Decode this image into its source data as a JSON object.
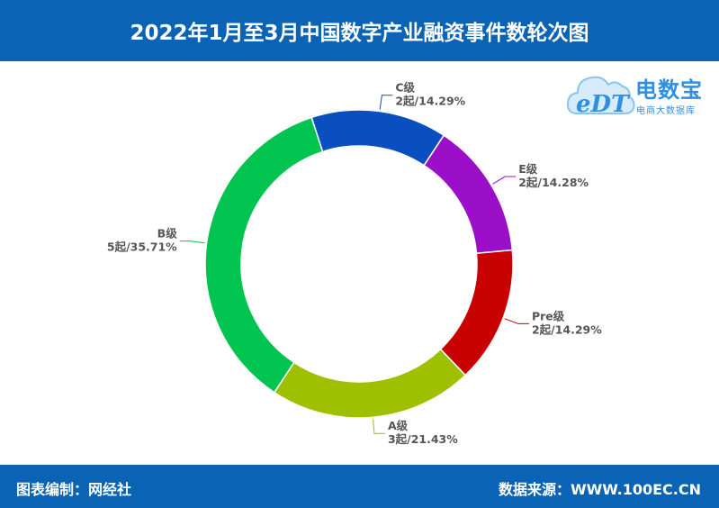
{
  "header": {
    "title": "2022年1月至3月中国数字产业融资事件数轮次图"
  },
  "footer": {
    "left_text": "图表编制：网经社",
    "right_text": "数据来源：WWW.100EC.CN"
  },
  "logo": {
    "mark_text": "eDT",
    "brand": "电数宝",
    "brand_sub": "电商大数据库"
  },
  "colors": {
    "header_bg": "#0a63b4",
    "C级": "#0a4fc0",
    "E级": "#9b0fc8",
    "Pre级": "#c80000",
    "A级": "#9ec000",
    "B级": "#00c44f"
  },
  "chart_data": {
    "type": "pie",
    "donut": true,
    "title": "2022年1月至3月中国数字产业融资事件数轮次图",
    "slices": [
      {
        "label": "C级",
        "count_label": "2起/14.29%",
        "value": 2,
        "percent": 14.29,
        "color": "#0a4fc0"
      },
      {
        "label": "E级",
        "count_label": "2起/14.28%",
        "value": 2,
        "percent": 14.28,
        "color": "#9b0fc8"
      },
      {
        "label": "Pre级",
        "count_label": "2起/14.29%",
        "value": 2,
        "percent": 14.29,
        "color": "#c80000"
      },
      {
        "label": "A级",
        "count_label": "3起/21.43%",
        "value": 3,
        "percent": 21.43,
        "color": "#9ec000"
      },
      {
        "label": "B级",
        "count_label": "5起/35.71%",
        "value": 5,
        "percent": 35.71,
        "color": "#00c44f"
      }
    ]
  }
}
